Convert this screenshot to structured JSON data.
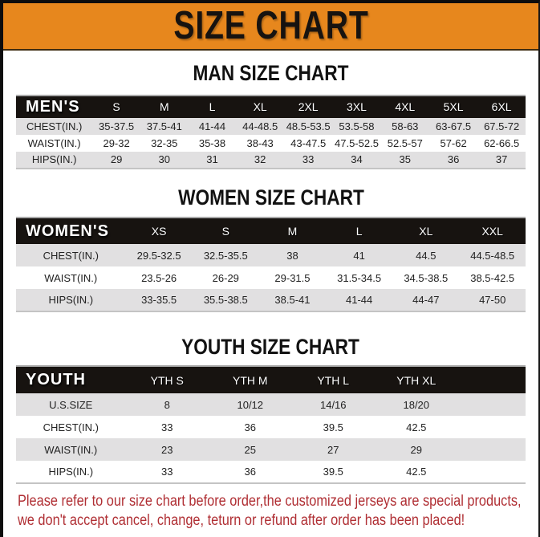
{
  "banner": {
    "title": "SIZE CHART"
  },
  "chart_data": [
    {
      "type": "table",
      "title": "MAN SIZE CHART",
      "columns": [
        "MEN'S",
        "S",
        "M",
        "L",
        "XL",
        "2XL",
        "3XL",
        "4XL",
        "5XL",
        "6XL"
      ],
      "rows": [
        {
          "label": "CHEST(IN.)",
          "values": [
            "35-37.5",
            "37.5-41",
            "41-44",
            "44-48.5",
            "48.5-53.5",
            "53.5-58",
            "58-63",
            "63-67.5",
            "67.5-72"
          ]
        },
        {
          "label": "WAIST(IN.)",
          "values": [
            "29-32",
            "32-35",
            "35-38",
            "38-43",
            "43-47.5",
            "47.5-52.5",
            "52.5-57",
            "57-62",
            "62-66.5"
          ]
        },
        {
          "label": "HIPS(IN.)",
          "values": [
            "29",
            "30",
            "31",
            "32",
            "33",
            "34",
            "35",
            "36",
            "37"
          ]
        }
      ]
    },
    {
      "type": "table",
      "title": "WOMEN SIZE CHART",
      "columns": [
        "WOMEN'S",
        "XS",
        "S",
        "M",
        "L",
        "XL",
        "XXL"
      ],
      "rows": [
        {
          "label": "CHEST(IN.)",
          "values": [
            "29.5-32.5",
            "32.5-35.5",
            "38",
            "41",
            "44.5",
            "44.5-48.5"
          ]
        },
        {
          "label": "WAIST(IN.)",
          "values": [
            "23.5-26",
            "26-29",
            "29-31.5",
            "31.5-34.5",
            "34.5-38.5",
            "38.5-42.5"
          ]
        },
        {
          "label": "HIPS(IN.)",
          "values": [
            "33-35.5",
            "35.5-38.5",
            "38.5-41",
            "41-44",
            "44-47",
            "47-50"
          ]
        }
      ]
    },
    {
      "type": "table",
      "title": "YOUTH SIZE CHART",
      "columns": [
        "YOUTH",
        "YTH S",
        "YTH M",
        "YTH L",
        "YTH XL"
      ],
      "rows": [
        {
          "label": "U.S.SIZE",
          "values": [
            "8",
            "10/12",
            "14/16",
            "18/20"
          ]
        },
        {
          "label": "CHEST(IN.)",
          "values": [
            "33",
            "36",
            "39.5",
            "42.5"
          ]
        },
        {
          "label": "WAIST(IN.)",
          "values": [
            "23",
            "25",
            "27",
            "29"
          ]
        },
        {
          "label": "HIPS(IN.)",
          "values": [
            "33",
            "36",
            "39.5",
            "42.5"
          ]
        }
      ]
    }
  ],
  "footer": {
    "lines": [
      "Please refer to our size chart before order,the customized jerseys are special products,",
      "we don't accept cancel, change, teturn or refund after order has been placed!"
    ]
  },
  "colors": {
    "accent_orange": "#e7871d",
    "header_black": "#171310",
    "row_gray": "#e1e0e1",
    "footer_red": "#b02f34"
  }
}
